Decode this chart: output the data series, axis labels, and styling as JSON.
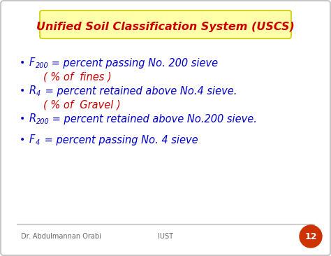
{
  "title": "Unified Soil Classification System (USCS)",
  "title_color": "#cc0000",
  "title_bg_color": "#ffffaa",
  "title_border_color": "#cccc00",
  "title_fontsize": 11.5,
  "slide_bg_color": "#ffffff",
  "border_color": "#bbbbbb",
  "bullet_color": "#0000cc",
  "bullet_char": "•",
  "footer_left": "Dr. Abdulmannan Orabi",
  "footer_center": "IUST",
  "footer_page": "12",
  "footer_page_bg": "#cc3300",
  "lines": [
    {
      "prefix": "F",
      "subscript": "200",
      "main_text": " = percent passing No. 200 sieve",
      "continuation": "( % of  fines )",
      "main_color": "#0000cc",
      "cont_color": "#cc0000"
    },
    {
      "prefix": "R",
      "subscript": "4",
      "main_text": " = percent retained above No.4 sieve.",
      "continuation": "( % of  Gravel )",
      "main_color": "#0000cc",
      "cont_color": "#cc0000"
    },
    {
      "prefix": "R",
      "subscript": "200",
      "main_text": " = percent retained above No.200 sieve.",
      "continuation": null,
      "main_color": "#0000cc",
      "cont_color": null
    },
    {
      "prefix": "F",
      "subscript": "4",
      "main_text": " = percent passing No. 4 sieve",
      "continuation": null,
      "main_color": "#0000cc",
      "cont_color": null
    }
  ]
}
